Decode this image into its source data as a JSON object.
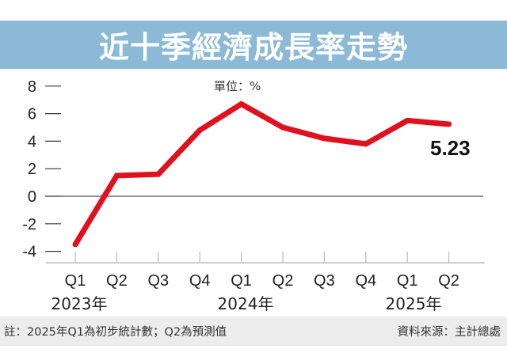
{
  "header": {
    "title": "近十季經濟成長率走勢"
  },
  "unit_label": "單位：%",
  "callout": {
    "label": "5.23"
  },
  "footer": {
    "note": "註：2025年Q1為初步統計數；Q2為預測值",
    "source": "資料來源：主計總處"
  },
  "colors": {
    "title_bar": "#8bb9d6",
    "line": "#e0101e",
    "footer_bg": "#ececec"
  },
  "chart_data": {
    "type": "line",
    "title": "近十季經濟成長率走勢",
    "unit": "%",
    "xlabel": "",
    "ylabel": "",
    "ylim": [
      -4,
      8
    ],
    "yticks": [
      8,
      6,
      4,
      2,
      0,
      -2,
      -4
    ],
    "ytick_labels": [
      "8",
      "6",
      "4",
      "2",
      "0",
      "-2",
      "-4"
    ],
    "categories": [
      "Q1",
      "Q2",
      "Q3",
      "Q4",
      "Q1",
      "Q2",
      "Q3",
      "Q4",
      "Q1",
      "Q2"
    ],
    "year_groups": [
      {
        "label": "2023年",
        "quarters": [
          "Q1",
          "Q2",
          "Q3",
          "Q4"
        ]
      },
      {
        "label": "2024年",
        "quarters": [
          "Q1",
          "Q2",
          "Q3",
          "Q4"
        ]
      },
      {
        "label": "2025年",
        "quarters": [
          "Q1",
          "Q2"
        ]
      }
    ],
    "series": [
      {
        "name": "經濟成長率",
        "color": "#e0101e",
        "values": [
          -3.5,
          1.5,
          1.6,
          4.8,
          6.7,
          5.0,
          4.2,
          3.8,
          5.5,
          5.23
        ]
      }
    ],
    "annotations": [
      {
        "text": "5.23",
        "point_index": 9
      }
    ],
    "grid": false,
    "zero_line": true,
    "legend": "none"
  }
}
